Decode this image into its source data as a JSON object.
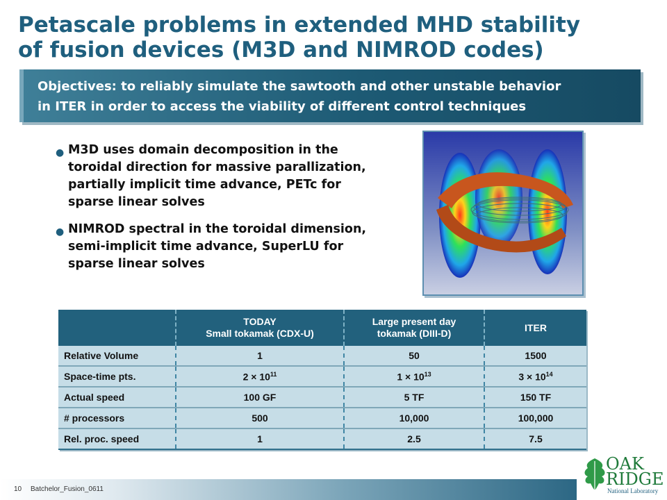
{
  "title": {
    "line1": "Petascale problems in extended MHD stability",
    "line2": "of  fusion devices (M3D and NIMROD codes)"
  },
  "objectives": {
    "line1": "Objectives: to reliably simulate the sawtooth and other unstable behavior",
    "line2": "in ITER in order to access the viability of different control techniques"
  },
  "bullets": [
    {
      "lines": [
        "M3D uses domain decomposition in the",
        "toroidal direction for massive parallization,",
        "partially implicit time advance, PETc for",
        "sparse linear solves"
      ]
    },
    {
      "lines": [
        "NIMROD spectral in the toroidal dimension,",
        "semi-implicit time advance, SuperLU for",
        "sparse linear solves"
      ]
    }
  ],
  "figure": {
    "icon": "tokamak-simulation-image"
  },
  "table": {
    "header": {
      "c0": "",
      "c1_line1": "TODAY",
      "c1_line2": "Small tokamak (CDX-U)",
      "c2_line1": "Large present day",
      "c2_line2": "tokamak (DIII-D)",
      "c3": "ITER"
    },
    "rows": [
      {
        "label": "Relative Volume",
        "v1": "1",
        "v2": "50",
        "v3": "1500"
      },
      {
        "label": "Space-time pts.",
        "v1": "2 × 10",
        "v1_exp": "11",
        "v2": "1 × 10",
        "v2_exp": "13",
        "v3": "3 × 10",
        "v3_exp": "14"
      },
      {
        "label": "Actual speed",
        "v1": "100 GF",
        "v2": "5 TF",
        "v3": "150 TF"
      },
      {
        "label": "# processors",
        "v1": "500",
        "v2": "10,000",
        "v3": "100,000"
      },
      {
        "label": "Rel. proc. speed",
        "v1": "1",
        "v2": "2.5",
        "v3": "7.5"
      }
    ]
  },
  "footer": {
    "page": "10",
    "text": "Batchelor_Fusion_0611"
  },
  "logo": {
    "word1": "OAK",
    "word2": "RIDGE",
    "word3": "National Laboratory",
    "icon": "oak-leaf-icon"
  },
  "colors": {
    "title": "#1f5f7e",
    "header_bg": "#22617d",
    "cell_bg": "#c6dde7"
  }
}
